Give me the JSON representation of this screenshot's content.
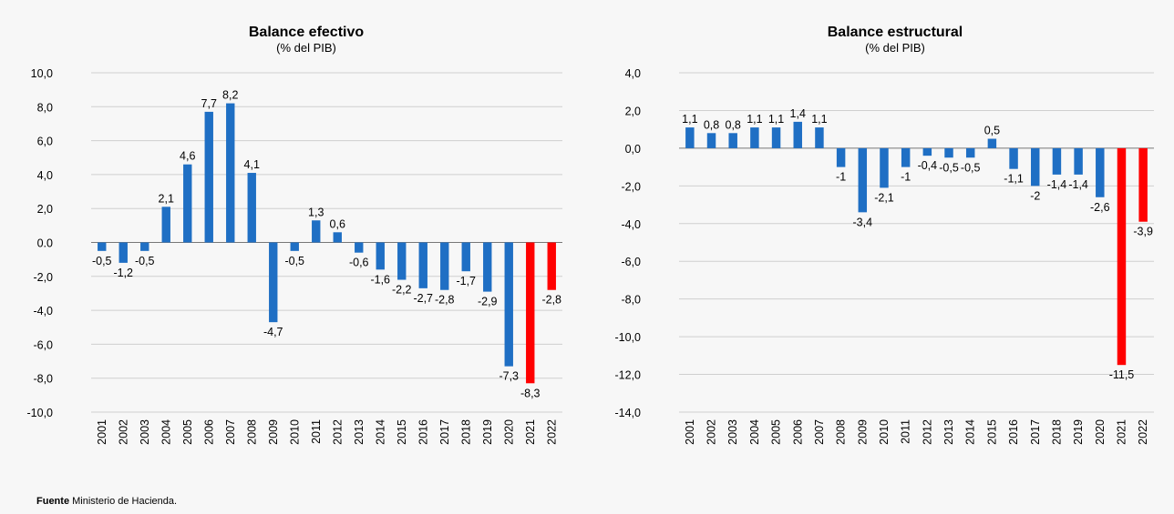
{
  "chart_data": [
    {
      "type": "bar",
      "title": "Balance efectivo",
      "subtitle": "(% del PIB)",
      "categories": [
        "2001",
        "2002",
        "2003",
        "2004",
        "2005",
        "2006",
        "2007",
        "2008",
        "2009",
        "2010",
        "2011",
        "2012",
        "2013",
        "2014",
        "2015",
        "2016",
        "2017",
        "2018",
        "2019",
        "2020",
        "2021",
        "2022"
      ],
      "values": [
        -0.5,
        -1.2,
        -0.5,
        2.1,
        4.6,
        7.7,
        8.2,
        4.1,
        -4.7,
        -0.5,
        1.3,
        0.6,
        -0.6,
        -1.6,
        -2.2,
        -2.7,
        -2.8,
        -1.7,
        -2.9,
        -7.3,
        -8.3,
        -2.8
      ],
      "value_labels": [
        "-0,5",
        "-1,2",
        "-0,5",
        "2,1",
        "4,6",
        "7,7",
        "8,2",
        "4,1",
        "-4,7",
        "-0,5",
        "1,3",
        "0,6",
        "-0,6",
        "-1,6",
        "-2,2",
        "-2,7",
        "-2,8",
        "-1,7",
        "-2,9",
        "-7,3",
        "-8,3",
        "-2,8"
      ],
      "colors": [
        "#1f6fc4",
        "#1f6fc4",
        "#1f6fc4",
        "#1f6fc4",
        "#1f6fc4",
        "#1f6fc4",
        "#1f6fc4",
        "#1f6fc4",
        "#1f6fc4",
        "#1f6fc4",
        "#1f6fc4",
        "#1f6fc4",
        "#1f6fc4",
        "#1f6fc4",
        "#1f6fc4",
        "#1f6fc4",
        "#1f6fc4",
        "#1f6fc4",
        "#1f6fc4",
        "#1f6fc4",
        "#ff0000",
        "#ff0000"
      ],
      "ylim": [
        -10,
        10
      ],
      "yticks": [
        {
          "value": 10,
          "label": "10,0"
        },
        {
          "value": 8,
          "label": "8,0"
        },
        {
          "value": 6,
          "label": "6,0"
        },
        {
          "value": 4,
          "label": "4,0"
        },
        {
          "value": 2,
          "label": "2,0"
        },
        {
          "value": 0,
          "label": "0.0"
        },
        {
          "value": -2,
          "label": "-2,0"
        },
        {
          "value": -4,
          "label": "-4,0"
        },
        {
          "value": -6,
          "label": "-6,0"
        },
        {
          "value": -8,
          "label": "-8,0"
        },
        {
          "value": -10,
          "label": "-10,0"
        }
      ],
      "grid": true
    },
    {
      "type": "bar",
      "title": "Balance estructural",
      "subtitle": "(% del PIB)",
      "categories": [
        "2001",
        "2002",
        "2003",
        "2004",
        "2005",
        "2006",
        "2007",
        "2008",
        "2009",
        "2010",
        "2011",
        "2012",
        "2013",
        "2014",
        "2015",
        "2016",
        "2017",
        "2018",
        "2019",
        "2020",
        "2021",
        "2022"
      ],
      "values": [
        1.1,
        0.8,
        0.8,
        1.1,
        1.1,
        1.4,
        1.1,
        -1,
        -3.4,
        -2.1,
        -1,
        -0.4,
        -0.5,
        -0.5,
        0.5,
        -1.1,
        -2,
        -1.4,
        -1.4,
        -2.6,
        -11.5,
        -3.9
      ],
      "value_labels": [
        "1,1",
        "0,8",
        "0,8",
        "1,1",
        "1,1",
        "1,4",
        "1,1",
        "-1",
        "-3,4",
        "-2,1",
        "-1",
        "-0,4",
        "-0,5",
        "-0,5",
        "0,5",
        "-1,1",
        "-2",
        "-1,4",
        "-1,4",
        "-2,6",
        "-11,5",
        "-3,9"
      ],
      "colors": [
        "#1f6fc4",
        "#1f6fc4",
        "#1f6fc4",
        "#1f6fc4",
        "#1f6fc4",
        "#1f6fc4",
        "#1f6fc4",
        "#1f6fc4",
        "#1f6fc4",
        "#1f6fc4",
        "#1f6fc4",
        "#1f6fc4",
        "#1f6fc4",
        "#1f6fc4",
        "#1f6fc4",
        "#1f6fc4",
        "#1f6fc4",
        "#1f6fc4",
        "#1f6fc4",
        "#1f6fc4",
        "#ff0000",
        "#ff0000"
      ],
      "ylim": [
        -14,
        4
      ],
      "yticks": [
        {
          "value": 4,
          "label": "4,0"
        },
        {
          "value": 2,
          "label": "2,0"
        },
        {
          "value": 0,
          "label": "0,0"
        },
        {
          "value": -2,
          "label": "-2,0"
        },
        {
          "value": -4,
          "label": "-4,0"
        },
        {
          "value": -6,
          "label": "-6,0"
        },
        {
          "value": -8,
          "label": "-8,0"
        },
        {
          "value": -10,
          "label": "-10,0"
        },
        {
          "value": -12,
          "label": "-12,0"
        },
        {
          "value": -14,
          "label": "-14,0"
        }
      ],
      "grid": true
    }
  ],
  "source": {
    "label": "Fuente",
    "text": "Ministerio de Hacienda."
  }
}
